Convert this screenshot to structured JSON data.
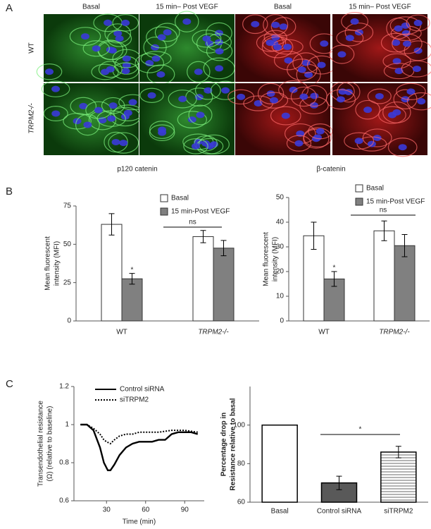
{
  "panel_a": {
    "label": "A",
    "columns": [
      "Basal",
      "15 min– Post VEGF",
      "Basal",
      "15 min– Post VEGF"
    ],
    "rows": [
      "WT",
      "TRPM2-/-"
    ],
    "stains": [
      "p120 catenin",
      "β-catenin"
    ]
  },
  "panel_labels": [
    "B",
    "C"
  ],
  "chart_data": [
    {
      "type": "bar",
      "categories": [
        "WT",
        "TRPM2-/-"
      ],
      "y_label": [
        "Mean fluorescent",
        "intensity (MFI)"
      ],
      "ylim": [
        0,
        75
      ],
      "yticks": [
        0,
        25,
        50,
        75
      ],
      "series": [
        {
          "name": "Basal",
          "color": "#ffffff",
          "values": [
            63,
            55
          ],
          "errors": [
            7,
            4
          ]
        },
        {
          "name": "15 min-Post VEGF",
          "color": "#808080",
          "values": [
            27.5,
            47.5
          ],
          "errors": [
            3.5,
            5
          ]
        }
      ],
      "annotations": [
        "*",
        "ns"
      ]
    },
    {
      "type": "bar",
      "categories": [
        "WT",
        "TRPM2-/-"
      ],
      "y_label": [
        "Mean fluorescent",
        "intensity (MFI)"
      ],
      "ylim": [
        0,
        50
      ],
      "yticks": [
        0,
        10,
        20,
        30,
        40,
        50
      ],
      "series": [
        {
          "name": "Basal",
          "color": "#ffffff",
          "values": [
            34.5,
            36.5
          ],
          "errors": [
            5.5,
            4
          ]
        },
        {
          "name": "15 min-Post VEGF",
          "color": "#808080",
          "values": [
            17,
            30.5
          ],
          "errors": [
            3,
            4.5
          ]
        }
      ],
      "annotations": [
        "*",
        "ns"
      ]
    },
    {
      "type": "line",
      "x_label": "Time (min)",
      "y_label": [
        "Transendothelial resistance",
        "(Ω) (relative to baseline)"
      ],
      "xlim": [
        5,
        105
      ],
      "xticks": [
        30,
        60,
        90
      ],
      "ylim": [
        0.6,
        1.2
      ],
      "yticks": [
        0.6,
        0.8,
        1,
        1.2
      ],
      "series": [
        {
          "name": "Control siRNA",
          "color": "#000000",
          "dash": false,
          "x": [
            10,
            15,
            20,
            25,
            28,
            31,
            33,
            36,
            40,
            45,
            50,
            55,
            60,
            65,
            70,
            75,
            80,
            85,
            90,
            95,
            100
          ],
          "values": [
            1.0,
            1.0,
            0.97,
            0.88,
            0.8,
            0.76,
            0.76,
            0.79,
            0.84,
            0.88,
            0.9,
            0.91,
            0.91,
            0.91,
            0.92,
            0.92,
            0.95,
            0.96,
            0.96,
            0.96,
            0.95
          ]
        },
        {
          "name": "siTRPM2",
          "color": "#000000",
          "dash": true,
          "x": [
            10,
            15,
            20,
            25,
            28,
            30,
            33,
            36,
            40,
            45,
            50,
            55,
            60,
            70,
            80,
            90,
            100
          ],
          "values": [
            1.0,
            1.0,
            0.98,
            0.95,
            0.92,
            0.91,
            0.9,
            0.92,
            0.94,
            0.95,
            0.95,
            0.96,
            0.96,
            0.96,
            0.97,
            0.97,
            0.96
          ]
        }
      ]
    },
    {
      "type": "column",
      "categories": [
        "Basal",
        "Control siRNA",
        "siTRPM2"
      ],
      "y_label": [
        "Percentage drop in",
        "Resistance relative to basal"
      ],
      "ylim": [
        60,
        120
      ],
      "yticks": [
        60,
        80,
        100
      ],
      "values": [
        100,
        70,
        86
      ],
      "errors": [
        null,
        3.5,
        3
      ],
      "colors": [
        "#ffffff",
        "#595959",
        "#ffffff"
      ],
      "hatch": [
        false,
        false,
        true
      ],
      "annotations": [
        "*"
      ]
    }
  ]
}
